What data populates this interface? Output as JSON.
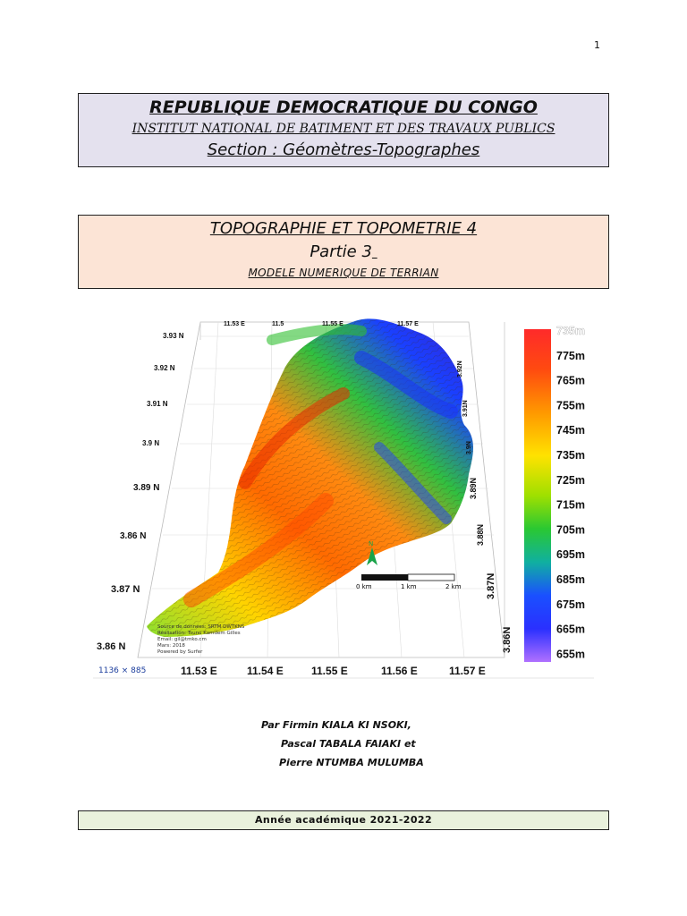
{
  "page_number": "1",
  "header": {
    "country": "REPUBLIQUE DEMOCRATIQUE DU CONGO",
    "institute": "INSTITUT NATIONAL DE BATIMENT ET DES TRAVAUX PUBLICS",
    "section": "Section : Géomètres-Topographes"
  },
  "course": {
    "title": "TOPOGRAPHIE ET TOPOMETRIE 4",
    "part": "Partie 3",
    "subtitle": "MODELE NUMERIQUE DE TERRIAN"
  },
  "figure": {
    "legend_values": [
      "735m",
      "775m",
      "765m",
      "755m",
      "745m",
      "735m",
      "725m",
      "715m",
      "705m",
      "695m",
      "685m",
      "675m",
      "665m",
      "655m"
    ],
    "legend_colors": [
      "#ff3b3b",
      "#ff2020",
      "#ff5a10",
      "#ff8c00",
      "#ffbf00",
      "#ffe600",
      "#d8f000",
      "#7cdc00",
      "#22c832",
      "#10b888",
      "#1a5cff",
      "#1a2cff",
      "#6a40ff",
      "#b070ff"
    ],
    "left_axis": [
      "3.93 N",
      "3.92 N",
      "3.91 N",
      "3.9 N",
      "3.89 N",
      "3.86 N",
      "3.87 N",
      "3.86 N"
    ],
    "bottom_axis": [
      "11.53 E",
      "11.54 E",
      "11.55 E",
      "11.56 E",
      "11.57 E"
    ],
    "top_axis": [
      "11.53 E",
      "11.5",
      "11.55 E",
      "11.57 E"
    ],
    "right_axis": [
      "3.92N",
      "3.91N",
      "3.9N",
      "3.89N",
      "3.88N",
      "3.87N",
      "3.86N"
    ],
    "scale_labels": [
      "0 km",
      "1 km",
      "2 km"
    ],
    "north_label": "N",
    "credits": [
      "Source de données: SRTM DWTKNS",
      "Réalisation: Tsunu Kamdem Gilles",
      "Email: gil@tmko.cm",
      "Mars: 2018",
      "Powered by Surfer"
    ],
    "size_note": "1136 × 885"
  },
  "authors": [
    "Par Firmin KIALA KI NSOKI,",
    "Pascal TABALA FAIAKI et",
    "Pierre NTUMBA MULUMBA"
  ],
  "academic_year": "Année académique 2021-2022"
}
